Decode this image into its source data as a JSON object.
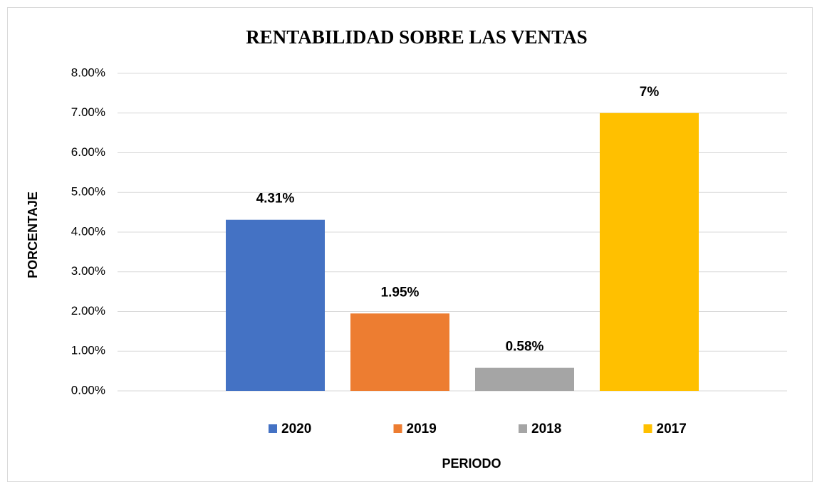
{
  "chart_data": {
    "type": "bar",
    "title": "RENTABILIDAD SOBRE LAS VENTAS",
    "x_label": "PERIODO",
    "y_label": "PORCENTAJE",
    "categories": [
      null
    ],
    "series": [
      {
        "name": "2020",
        "color": "#4472c4",
        "values": [
          4.31
        ],
        "value_labels": [
          "4.31%"
        ]
      },
      {
        "name": "2019",
        "color": "#ed7d31",
        "values": [
          1.95
        ],
        "value_labels": [
          "1.95%"
        ]
      },
      {
        "name": "2018",
        "color": "#a5a5a5",
        "values": [
          0.58
        ],
        "value_labels": [
          "0.58%"
        ]
      },
      {
        "name": "2017",
        "color": "#ffc000",
        "values": [
          7
        ],
        "value_labels": [
          "7%"
        ]
      }
    ],
    "ylim": [
      0,
      8
    ],
    "yticks": [
      {
        "value": 0,
        "label": "0.00%"
      },
      {
        "value": 1,
        "label": "1.00%"
      },
      {
        "value": 2,
        "label": "2.00%"
      },
      {
        "value": 3,
        "label": "3.00%"
      },
      {
        "value": 4,
        "label": "4.00%"
      },
      {
        "value": 5,
        "label": "5.00%"
      },
      {
        "value": 6,
        "label": "6.00%"
      },
      {
        "value": 7,
        "label": "7.00%"
      },
      {
        "value": 8,
        "label": "8.00%"
      }
    ],
    "grid": true,
    "legend": "bottom"
  }
}
